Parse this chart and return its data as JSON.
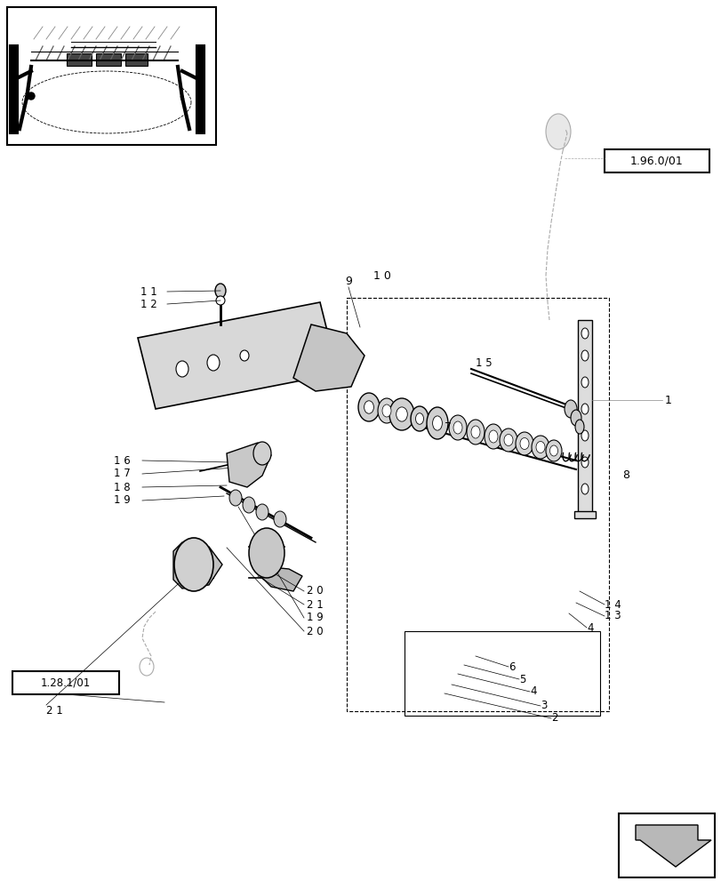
{
  "bg_color": "#ffffff",
  "fig_width": 8.12,
  "fig_height": 10.0,
  "dpi": 100,
  "ref_box1": "1.96.0/01",
  "ref_box2": "1.28.1/01"
}
